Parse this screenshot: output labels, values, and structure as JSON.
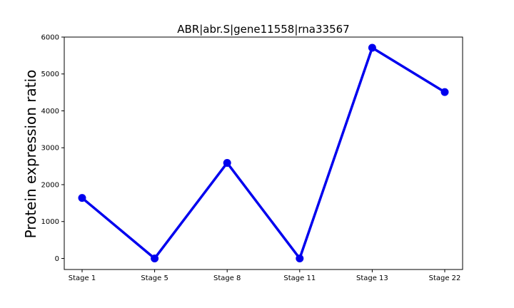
{
  "chart_data": {
    "type": "line",
    "title": "ABR|abr.S|gene11558|rna33567",
    "xlabel": "",
    "ylabel": "Protein expression ratio",
    "categories": [
      "Stage 1",
      "Stage 5",
      "Stage 8",
      "Stage 11",
      "Stage 13",
      "Stage 22"
    ],
    "series": [
      {
        "values": [
          1640,
          0,
          2590,
          0,
          5710,
          4510
        ],
        "color": "#0000ee"
      }
    ],
    "ylim": [
      -300,
      6000
    ],
    "yticks": [
      0,
      1000,
      2000,
      3000,
      4000,
      5000,
      6000
    ],
    "grid": false,
    "legend": "none"
  }
}
